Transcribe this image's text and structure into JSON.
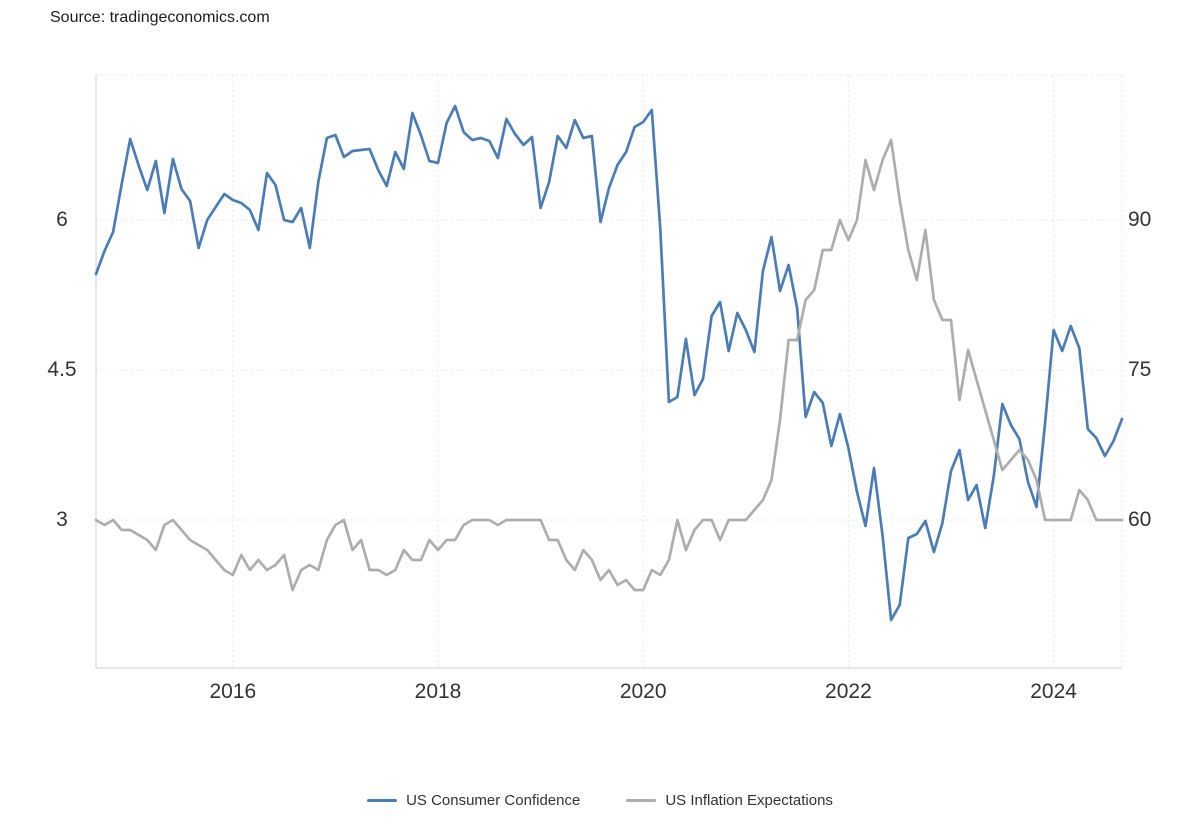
{
  "header": {
    "source": "Source: tradingeconomics.com"
  },
  "chart_data": {
    "type": "line",
    "x_start": "2014-09",
    "x_end": "2024-09",
    "frequency": "monthly",
    "grid": true,
    "legend_position": "bottom",
    "x_ticks": [
      {
        "label": "2016",
        "month_index": 16
      },
      {
        "label": "2018",
        "month_index": 40
      },
      {
        "label": "2020",
        "month_index": 64
      },
      {
        "label": "2022",
        "month_index": 88
      },
      {
        "label": "2024",
        "month_index": 112
      }
    ],
    "left_axis": {
      "min": 1.52,
      "max": 7.45,
      "ticks": [
        {
          "label": "6",
          "value": 6
        },
        {
          "label": "4.5",
          "value": 4.5
        },
        {
          "label": "3",
          "value": 3
        }
      ]
    },
    "right_axis": {
      "min": 45.2,
      "max": 104.5,
      "ticks": [
        {
          "label": "90",
          "value": 90
        },
        {
          "label": "75",
          "value": 75
        },
        {
          "label": "60",
          "value": 60
        }
      ]
    },
    "series": [
      {
        "name": "US Consumer Confidence",
        "id": "consumer-confidence-line",
        "color": "#4a7db6",
        "axis": "right",
        "values": [
          84.6,
          86.9,
          88.8,
          93.6,
          98.1,
          95.4,
          93.0,
          95.9,
          90.7,
          96.1,
          93.1,
          91.9,
          87.2,
          90.0,
          91.3,
          92.6,
          92.0,
          91.7,
          91.0,
          89.0,
          94.7,
          93.5,
          90.0,
          89.8,
          91.2,
          87.2,
          93.8,
          98.2,
          98.5,
          96.3,
          96.9,
          97.0,
          97.1,
          95.0,
          93.4,
          96.8,
          95.1,
          100.7,
          98.5,
          95.9,
          95.7,
          99.7,
          101.4,
          98.8,
          98.0,
          98.2,
          97.9,
          96.2,
          100.1,
          98.6,
          97.5,
          98.3,
          91.2,
          93.8,
          98.4,
          97.2,
          100.0,
          98.2,
          98.4,
          89.8,
          93.2,
          95.5,
          96.8,
          99.3,
          99.8,
          101.0,
          89.1,
          71.8,
          72.3,
          78.1,
          72.5,
          74.1,
          80.4,
          81.8,
          76.9,
          80.7,
          79.0,
          76.8,
          84.9,
          88.3,
          82.9,
          85.5,
          81.2,
          70.3,
          72.8,
          71.7,
          67.4,
          70.6,
          67.2,
          62.8,
          59.4,
          65.2,
          58.4,
          50.0,
          51.5,
          58.2,
          58.6,
          59.9,
          56.8,
          59.7,
          64.9,
          67.0,
          62.0,
          63.5,
          59.2,
          64.4,
          71.6,
          69.5,
          68.1,
          63.8,
          61.3,
          69.7,
          79.0,
          76.9,
          79.4,
          77.2,
          69.1,
          68.2,
          66.4,
          67.9,
          70.1
        ]
      },
      {
        "name": "US Inflation Expectations",
        "id": "inflation-expectations-line",
        "color": "#adadad",
        "axis": "left",
        "values": [
          3.0,
          2.95,
          3.0,
          2.9,
          2.9,
          2.85,
          2.8,
          2.7,
          2.95,
          3.0,
          2.9,
          2.8,
          2.75,
          2.7,
          2.6,
          2.5,
          2.45,
          2.65,
          2.5,
          2.6,
          2.5,
          2.55,
          2.65,
          2.3,
          2.5,
          2.55,
          2.5,
          2.8,
          2.95,
          3.0,
          2.7,
          2.8,
          2.5,
          2.5,
          2.45,
          2.5,
          2.7,
          2.6,
          2.6,
          2.8,
          2.7,
          2.8,
          2.8,
          2.95,
          3.0,
          3.0,
          3.0,
          2.95,
          3.0,
          3.0,
          3.0,
          3.0,
          3.0,
          2.8,
          2.8,
          2.6,
          2.5,
          2.7,
          2.6,
          2.4,
          2.5,
          2.35,
          2.4,
          2.3,
          2.3,
          2.5,
          2.45,
          2.6,
          3.0,
          2.7,
          2.9,
          3.0,
          3.0,
          2.8,
          3.0,
          3.0,
          3.0,
          3.1,
          3.2,
          3.4,
          4.0,
          4.8,
          4.8,
          5.2,
          5.3,
          5.7,
          5.7,
          6.0,
          5.8,
          6.0,
          6.6,
          6.3,
          6.6,
          6.8,
          6.2,
          5.7,
          5.4,
          5.9,
          5.2,
          5.0,
          5.0,
          4.2,
          4.7,
          4.4,
          4.1,
          3.8,
          3.5,
          3.6,
          3.7,
          3.6,
          3.4,
          3.0,
          3.0,
          3.0,
          3.0,
          3.3,
          3.2,
          3.0,
          3.0,
          3.0,
          3.0
        ]
      }
    ]
  }
}
